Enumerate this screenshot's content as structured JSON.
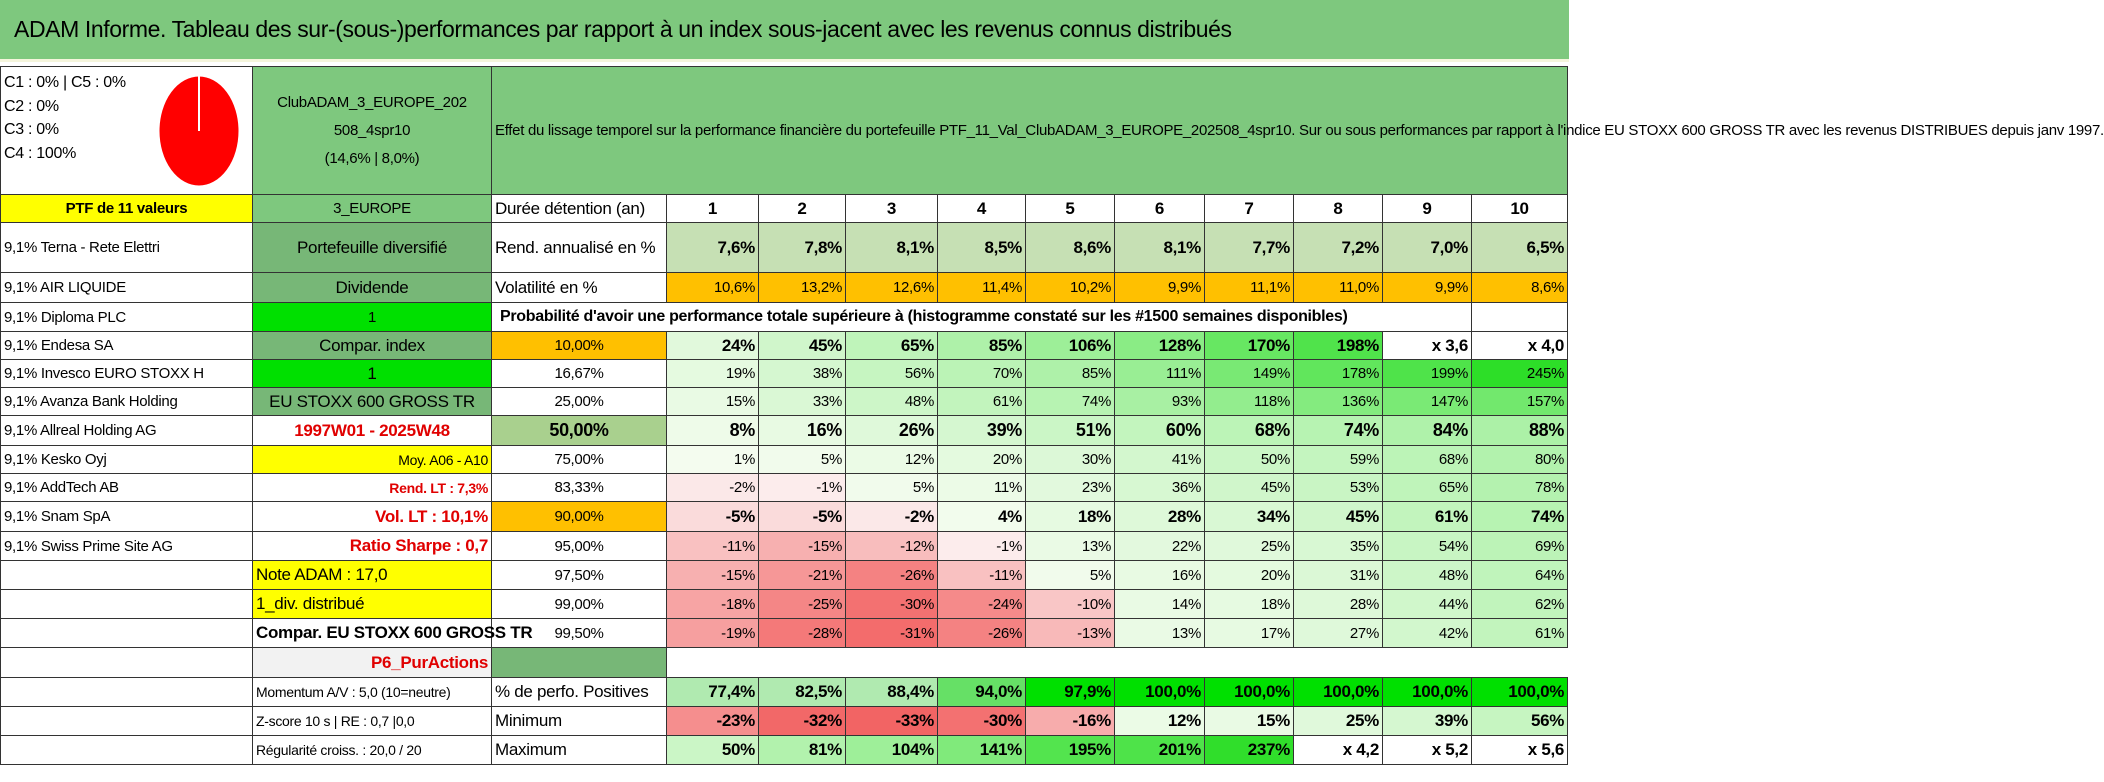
{
  "title": "ADAM Informe. Tableau des sur-(sous-)performances par rapport à un index sous-jacent avec les revenus connus distribués",
  "categories": [
    "C1 : 0% | C5 : 0%",
    "C2 : 0%",
    "C3 : 0%",
    "C4 : 100%"
  ],
  "pie": {
    "color": "#ff0000",
    "share_c4": 1.0
  },
  "fund": {
    "name_line1": "ClubADAM_3_EUROPE_202",
    "name_line2": "508_4spr10",
    "perf": "(14,6% | 8,0%)"
  },
  "description": "Effet du lissage temporel sur la performance financière du portefeuille PTF_11_Val_ClubADAM_3_EUROPE_202508_4spr10. Sur ou sous performances par rapport à l'indice EU STOXX 600 GROSS TR avec les revenus DISTRIBUES depuis janv 1997.",
  "ptf_header": "PTF de 11 valeurs",
  "zone": "3_EUROPE",
  "duree_label": "Durée détention (an)",
  "years": [
    "1",
    "2",
    "3",
    "4",
    "5",
    "6",
    "7",
    "8",
    "9",
    "10"
  ],
  "holdings": [
    "9,1% Terna - Rete Elettri",
    "9,1% AIR LIQUIDE",
    "9,1% Diploma PLC",
    "9,1% Endesa SA",
    "9,1% Invesco EURO STOXX H",
    "9,1% Avanza Bank Holding",
    "9,1% Allreal Holding AG",
    "9,1% Kesko Oyj",
    "9,1% AddTech AB",
    "9,1% Snam SpA",
    "9,1% Swiss Prime Site AG"
  ],
  "info_col": [
    "Portefeuille diversifié",
    "Dividende",
    "1",
    "Compar. index",
    "1",
    "EU STOXX 600 GROSS TR",
    "1997W01 - 2025W48",
    "Moy. A06 - A10",
    "Rend. LT : 7,3%",
    "Vol. LT : 10,1%",
    "Ratio Sharpe : 0,7",
    "Note ADAM : 17,0",
    "1_div. distribué",
    "Compar. EU STOXX 600 GROSS TR",
    "P6_PurActions",
    "Momentum A/V : 5,0 (10=neutre)",
    "Z-score 10 s | RE : 0,7 |0,0",
    "Régularité croiss. : 20,0 / 20"
  ],
  "rend_label": "Rend. annualisé en %",
  "rend": [
    "7,6%",
    "7,8%",
    "8,1%",
    "8,5%",
    "8,6%",
    "8,1%",
    "7,7%",
    "7,2%",
    "7,0%",
    "6,5%"
  ],
  "vol_label": "Volatilité en %",
  "vol": [
    "10,6%",
    "13,2%",
    "12,6%",
    "11,4%",
    "10,2%",
    "9,9%",
    "11,1%",
    "11,0%",
    "9,9%",
    "8,6%"
  ],
  "proba_label": "Probabilité d'avoir une performance totale supérieure à (histogramme constaté sur les #1500 semaines disponibles)",
  "proba_rows": [
    {
      "p": "10,00%",
      "v": [
        "24%",
        "45%",
        "65%",
        "85%",
        "106%",
        "128%",
        "170%",
        "198%",
        "x 3,6",
        "x 4,0"
      ]
    },
    {
      "p": "16,67%",
      "v": [
        "19%",
        "38%",
        "56%",
        "70%",
        "85%",
        "111%",
        "149%",
        "178%",
        "199%",
        "245%"
      ]
    },
    {
      "p": "25,00%",
      "v": [
        "15%",
        "33%",
        "48%",
        "61%",
        "74%",
        "93%",
        "118%",
        "136%",
        "147%",
        "157%"
      ]
    },
    {
      "p": "50,00%",
      "v": [
        "8%",
        "16%",
        "26%",
        "39%",
        "51%",
        "60%",
        "68%",
        "74%",
        "84%",
        "88%"
      ]
    },
    {
      "p": "75,00%",
      "v": [
        "1%",
        "5%",
        "12%",
        "20%",
        "30%",
        "41%",
        "50%",
        "59%",
        "68%",
        "80%"
      ]
    },
    {
      "p": "83,33%",
      "v": [
        "-2%",
        "-1%",
        "5%",
        "11%",
        "23%",
        "36%",
        "45%",
        "53%",
        "65%",
        "78%"
      ]
    },
    {
      "p": "90,00%",
      "v": [
        "-5%",
        "-5%",
        "-2%",
        "4%",
        "18%",
        "28%",
        "34%",
        "45%",
        "61%",
        "74%"
      ]
    },
    {
      "p": "95,00%",
      "v": [
        "-11%",
        "-15%",
        "-12%",
        "-1%",
        "13%",
        "22%",
        "25%",
        "35%",
        "54%",
        "69%"
      ]
    },
    {
      "p": "97,50%",
      "v": [
        "-15%",
        "-21%",
        "-26%",
        "-11%",
        "5%",
        "16%",
        "20%",
        "31%",
        "48%",
        "64%"
      ]
    },
    {
      "p": "99,00%",
      "v": [
        "-18%",
        "-25%",
        "-30%",
        "-24%",
        "-10%",
        "14%",
        "18%",
        "28%",
        "44%",
        "62%"
      ]
    },
    {
      "p": "99,50%",
      "v": [
        "-19%",
        "-28%",
        "-31%",
        "-26%",
        "-13%",
        "13%",
        "17%",
        "27%",
        "42%",
        "61%"
      ]
    }
  ],
  "pos_label": "% de perfo. Positives",
  "pos": [
    "77,4%",
    "82,5%",
    "88,4%",
    "94,0%",
    "97,9%",
    "100,0%",
    "100,0%",
    "100,0%",
    "100,0%",
    "100,0%"
  ],
  "min_label": "Minimum",
  "min": [
    "-23%",
    "-32%",
    "-33%",
    "-30%",
    "-16%",
    "12%",
    "15%",
    "25%",
    "39%",
    "56%"
  ],
  "max_label": "Maximum",
  "max": [
    "50%",
    "81%",
    "104%",
    "141%",
    "195%",
    "201%",
    "237%",
    "x 4,2",
    "x 5,2",
    "x 5,6"
  ]
}
